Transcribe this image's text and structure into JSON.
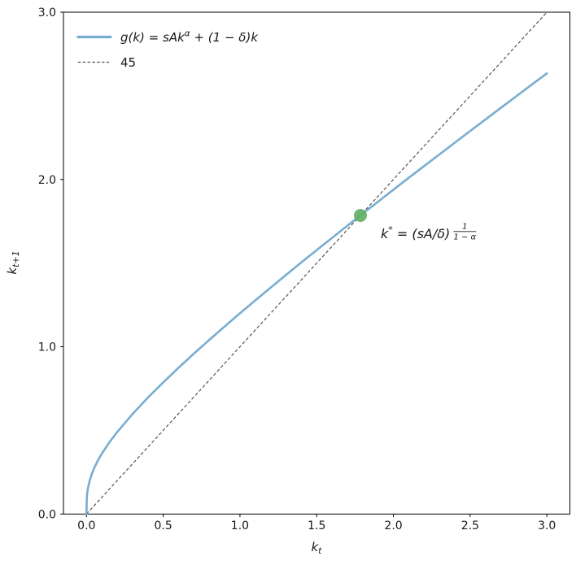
{
  "chart_data": {
    "type": "line",
    "title": "",
    "xlabel": "k_t",
    "ylabel": "k_{t+1}",
    "xlim": [
      -0.15,
      3.15
    ],
    "ylim": [
      0,
      3
    ],
    "xticks": [
      0.0,
      0.5,
      1.0,
      1.5,
      2.0,
      2.5,
      3.0
    ],
    "yticks": [
      0.0,
      1.0,
      2.0,
      3.0
    ],
    "grid": false,
    "legend_position": "upper left",
    "series": [
      {
        "name": "g(k) = sAk^α + (1 − δ)k",
        "style": "solid",
        "color": "#78add2",
        "line_width": 2.6,
        "x": [
          0,
          0.002,
          0.005,
          0.01,
          0.02,
          0.035,
          0.05,
          0.075,
          0.1,
          0.15,
          0.2,
          0.3,
          0.4,
          0.5,
          0.6,
          0.7,
          0.8,
          0.9,
          1.0,
          1.1,
          1.2,
          1.3,
          1.4,
          1.5,
          1.6,
          1.7,
          1.8,
          1.9,
          2.0,
          2.1,
          2.2,
          2.3,
          2.4,
          2.5,
          2.6,
          2.7,
          2.8,
          2.9,
          3.0
        ],
        "y": [
          0,
          0.094,
          0.125,
          0.157,
          0.198,
          0.24,
          0.274,
          0.321,
          0.361,
          0.43,
          0.49,
          0.598,
          0.696,
          0.787,
          0.875,
          0.959,
          1.041,
          1.121,
          1.2,
          1.277,
          1.354,
          1.429,
          1.504,
          1.578,
          1.651,
          1.724,
          1.796,
          1.867,
          1.939,
          2.01,
          2.08,
          2.15,
          2.22,
          2.29,
          2.359,
          2.428,
          2.497,
          2.566,
          2.634
        ]
      },
      {
        "name": "45",
        "style": "dashed",
        "color": "#555555",
        "line_width": 1.2,
        "x": [
          0,
          3
        ],
        "y": [
          0,
          3
        ]
      }
    ],
    "fixed_point": {
      "x": 1.785,
      "y": 1.785,
      "color": "#5fae60",
      "marker_radius": 8,
      "label": "k* = (sA/δ)^(1/(1−α))"
    }
  },
  "axes": {
    "xlabel_base": "k",
    "xlabel_sub": "t",
    "ylabel_base": "k",
    "ylabel_sub": "t+1",
    "xtick_labels": [
      "0.0",
      "0.5",
      "1.0",
      "1.5",
      "2.0",
      "2.5",
      "3.0"
    ],
    "ytick_labels": [
      "0.0",
      "1.0",
      "2.0",
      "3.0"
    ]
  },
  "legend": {
    "entry1_pre": "g(k) = sAk",
    "entry1_sup": "α",
    "entry1_post": " + (1 − δ)k",
    "entry2": "45"
  },
  "annotation": {
    "base": "k",
    "star": "*",
    "mid": " = (sA/δ)",
    "frac_num": "1",
    "frac_den": "1 − α"
  }
}
